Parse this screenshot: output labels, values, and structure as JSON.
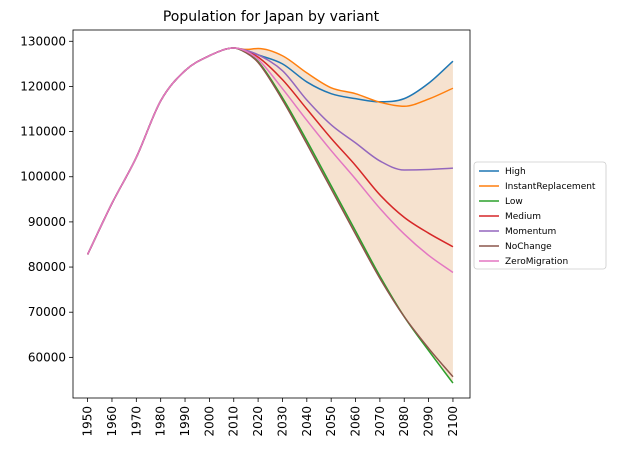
{
  "chart_data": {
    "type": "line",
    "title": "Population for Japan by variant",
    "xlabel": "",
    "ylabel": "",
    "xlim": [
      1944,
      2107
    ],
    "ylim": [
      51000,
      132500
    ],
    "x_ticks": [
      1950,
      1960,
      1970,
      1980,
      1990,
      2000,
      2010,
      2020,
      2030,
      2040,
      2050,
      2060,
      2070,
      2080,
      2090,
      2100
    ],
    "y_ticks": [
      60000,
      70000,
      80000,
      90000,
      100000,
      110000,
      120000,
      130000
    ],
    "y_tick_labels": [
      "60000",
      "70000",
      "80000",
      "90000",
      "100000",
      "110000",
      "120000",
      "130000"
    ],
    "grid": false,
    "legend_position": "center-right outside",
    "band": {
      "color": "#f5e0cc",
      "description": "range between High/InstantReplacement upper and Low lower"
    },
    "series": [
      {
        "name": "High",
        "color": "#1f77b4",
        "x": [
          1950,
          1960,
          1970,
          1980,
          1990,
          2000,
          2010,
          2015,
          2020,
          2030,
          2040,
          2050,
          2060,
          2070,
          2080,
          2090,
          2100
        ],
        "y": [
          82800,
          94100,
          104300,
          116800,
          123500,
          126800,
          128500,
          128000,
          127000,
          125000,
          121000,
          118400,
          117300,
          116600,
          117300,
          120700,
          125600
        ]
      },
      {
        "name": "InstantReplacement",
        "color": "#ff7f0e",
        "x": [
          1950,
          1960,
          1970,
          1980,
          1990,
          2000,
          2010,
          2015,
          2020,
          2030,
          2040,
          2050,
          2060,
          2070,
          2080,
          2090,
          2100
        ],
        "y": [
          82800,
          94100,
          104300,
          116800,
          123500,
          126800,
          128500,
          128200,
          128400,
          126800,
          123000,
          119700,
          118400,
          116500,
          115600,
          117200,
          119600
        ]
      },
      {
        "name": "Low",
        "color": "#2ca02c",
        "x": [
          1950,
          1960,
          1970,
          1980,
          1990,
          2000,
          2010,
          2015,
          2020,
          2030,
          2040,
          2050,
          2060,
          2070,
          2080,
          2090,
          2100
        ],
        "y": [
          82800,
          94100,
          104300,
          116800,
          123500,
          126800,
          128500,
          127500,
          125500,
          117500,
          108000,
          98000,
          88000,
          78000,
          69000,
          61500,
          54300
        ]
      },
      {
        "name": "Medium",
        "color": "#d62728",
        "x": [
          1950,
          1960,
          1970,
          1980,
          1990,
          2000,
          2010,
          2015,
          2020,
          2030,
          2040,
          2050,
          2060,
          2070,
          2080,
          2090,
          2100
        ],
        "y": [
          82800,
          94100,
          104300,
          116800,
          123500,
          126800,
          128500,
          127800,
          126500,
          121500,
          115000,
          108500,
          102500,
          96000,
          91000,
          87500,
          84500
        ]
      },
      {
        "name": "Momentum",
        "color": "#9467bd",
        "x": [
          1950,
          1960,
          1970,
          1980,
          1990,
          2000,
          2010,
          2015,
          2020,
          2030,
          2040,
          2050,
          2060,
          2070,
          2080,
          2090,
          2100
        ],
        "y": [
          82800,
          94100,
          104300,
          116800,
          123500,
          126800,
          128500,
          128000,
          127000,
          123500,
          117000,
          111500,
          107500,
          103500,
          101500,
          101600,
          101900
        ]
      },
      {
        "name": "NoChange",
        "color": "#8c564b",
        "x": [
          1950,
          1960,
          1970,
          1980,
          1990,
          2000,
          2010,
          2015,
          2020,
          2030,
          2040,
          2050,
          2060,
          2070,
          2080,
          2090,
          2100
        ],
        "y": [
          82800,
          94100,
          104300,
          116800,
          123500,
          126800,
          128500,
          127500,
          125300,
          117000,
          107300,
          97300,
          87300,
          77500,
          69000,
          62000,
          55700
        ]
      },
      {
        "name": "ZeroMigration",
        "color": "#e377c2",
        "x": [
          1950,
          1960,
          1970,
          1980,
          1990,
          2000,
          2010,
          2015,
          2020,
          2030,
          2040,
          2050,
          2060,
          2070,
          2080,
          2090,
          2100
        ],
        "y": [
          82800,
          94100,
          104300,
          116800,
          123500,
          126800,
          128500,
          127800,
          126000,
          119500,
          112500,
          105800,
          99500,
          93000,
          87300,
          82600,
          78800
        ]
      }
    ]
  }
}
